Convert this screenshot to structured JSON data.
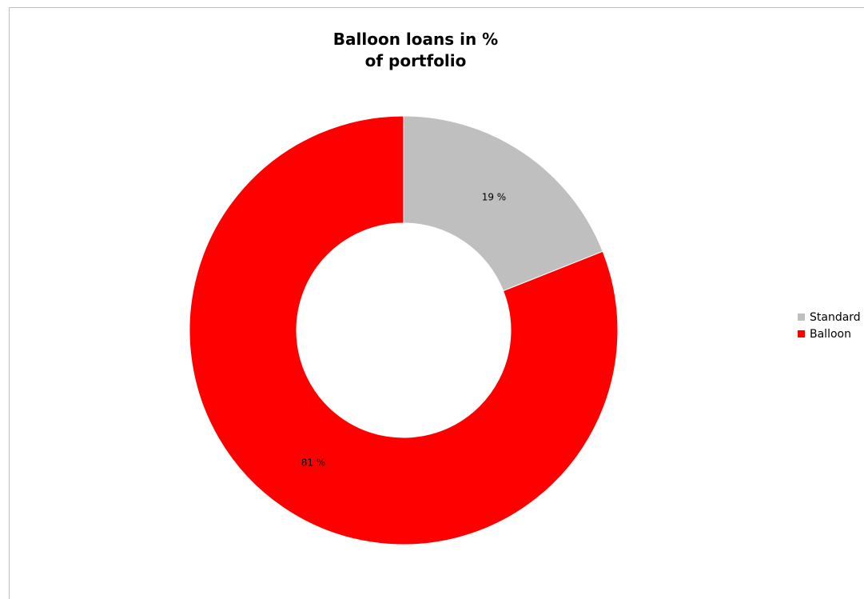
{
  "chart_data": {
    "type": "pie",
    "variant": "doughnut",
    "title_lines": [
      "Balloon loans in %",
      "of portfolio"
    ],
    "categories": [
      "Standard",
      "Balloon"
    ],
    "values": [
      19,
      81
    ],
    "value_labels": [
      "19 %",
      "81 %"
    ],
    "colors": [
      "#bfbfbf",
      "#ff0000"
    ],
    "legend_position": "right"
  }
}
